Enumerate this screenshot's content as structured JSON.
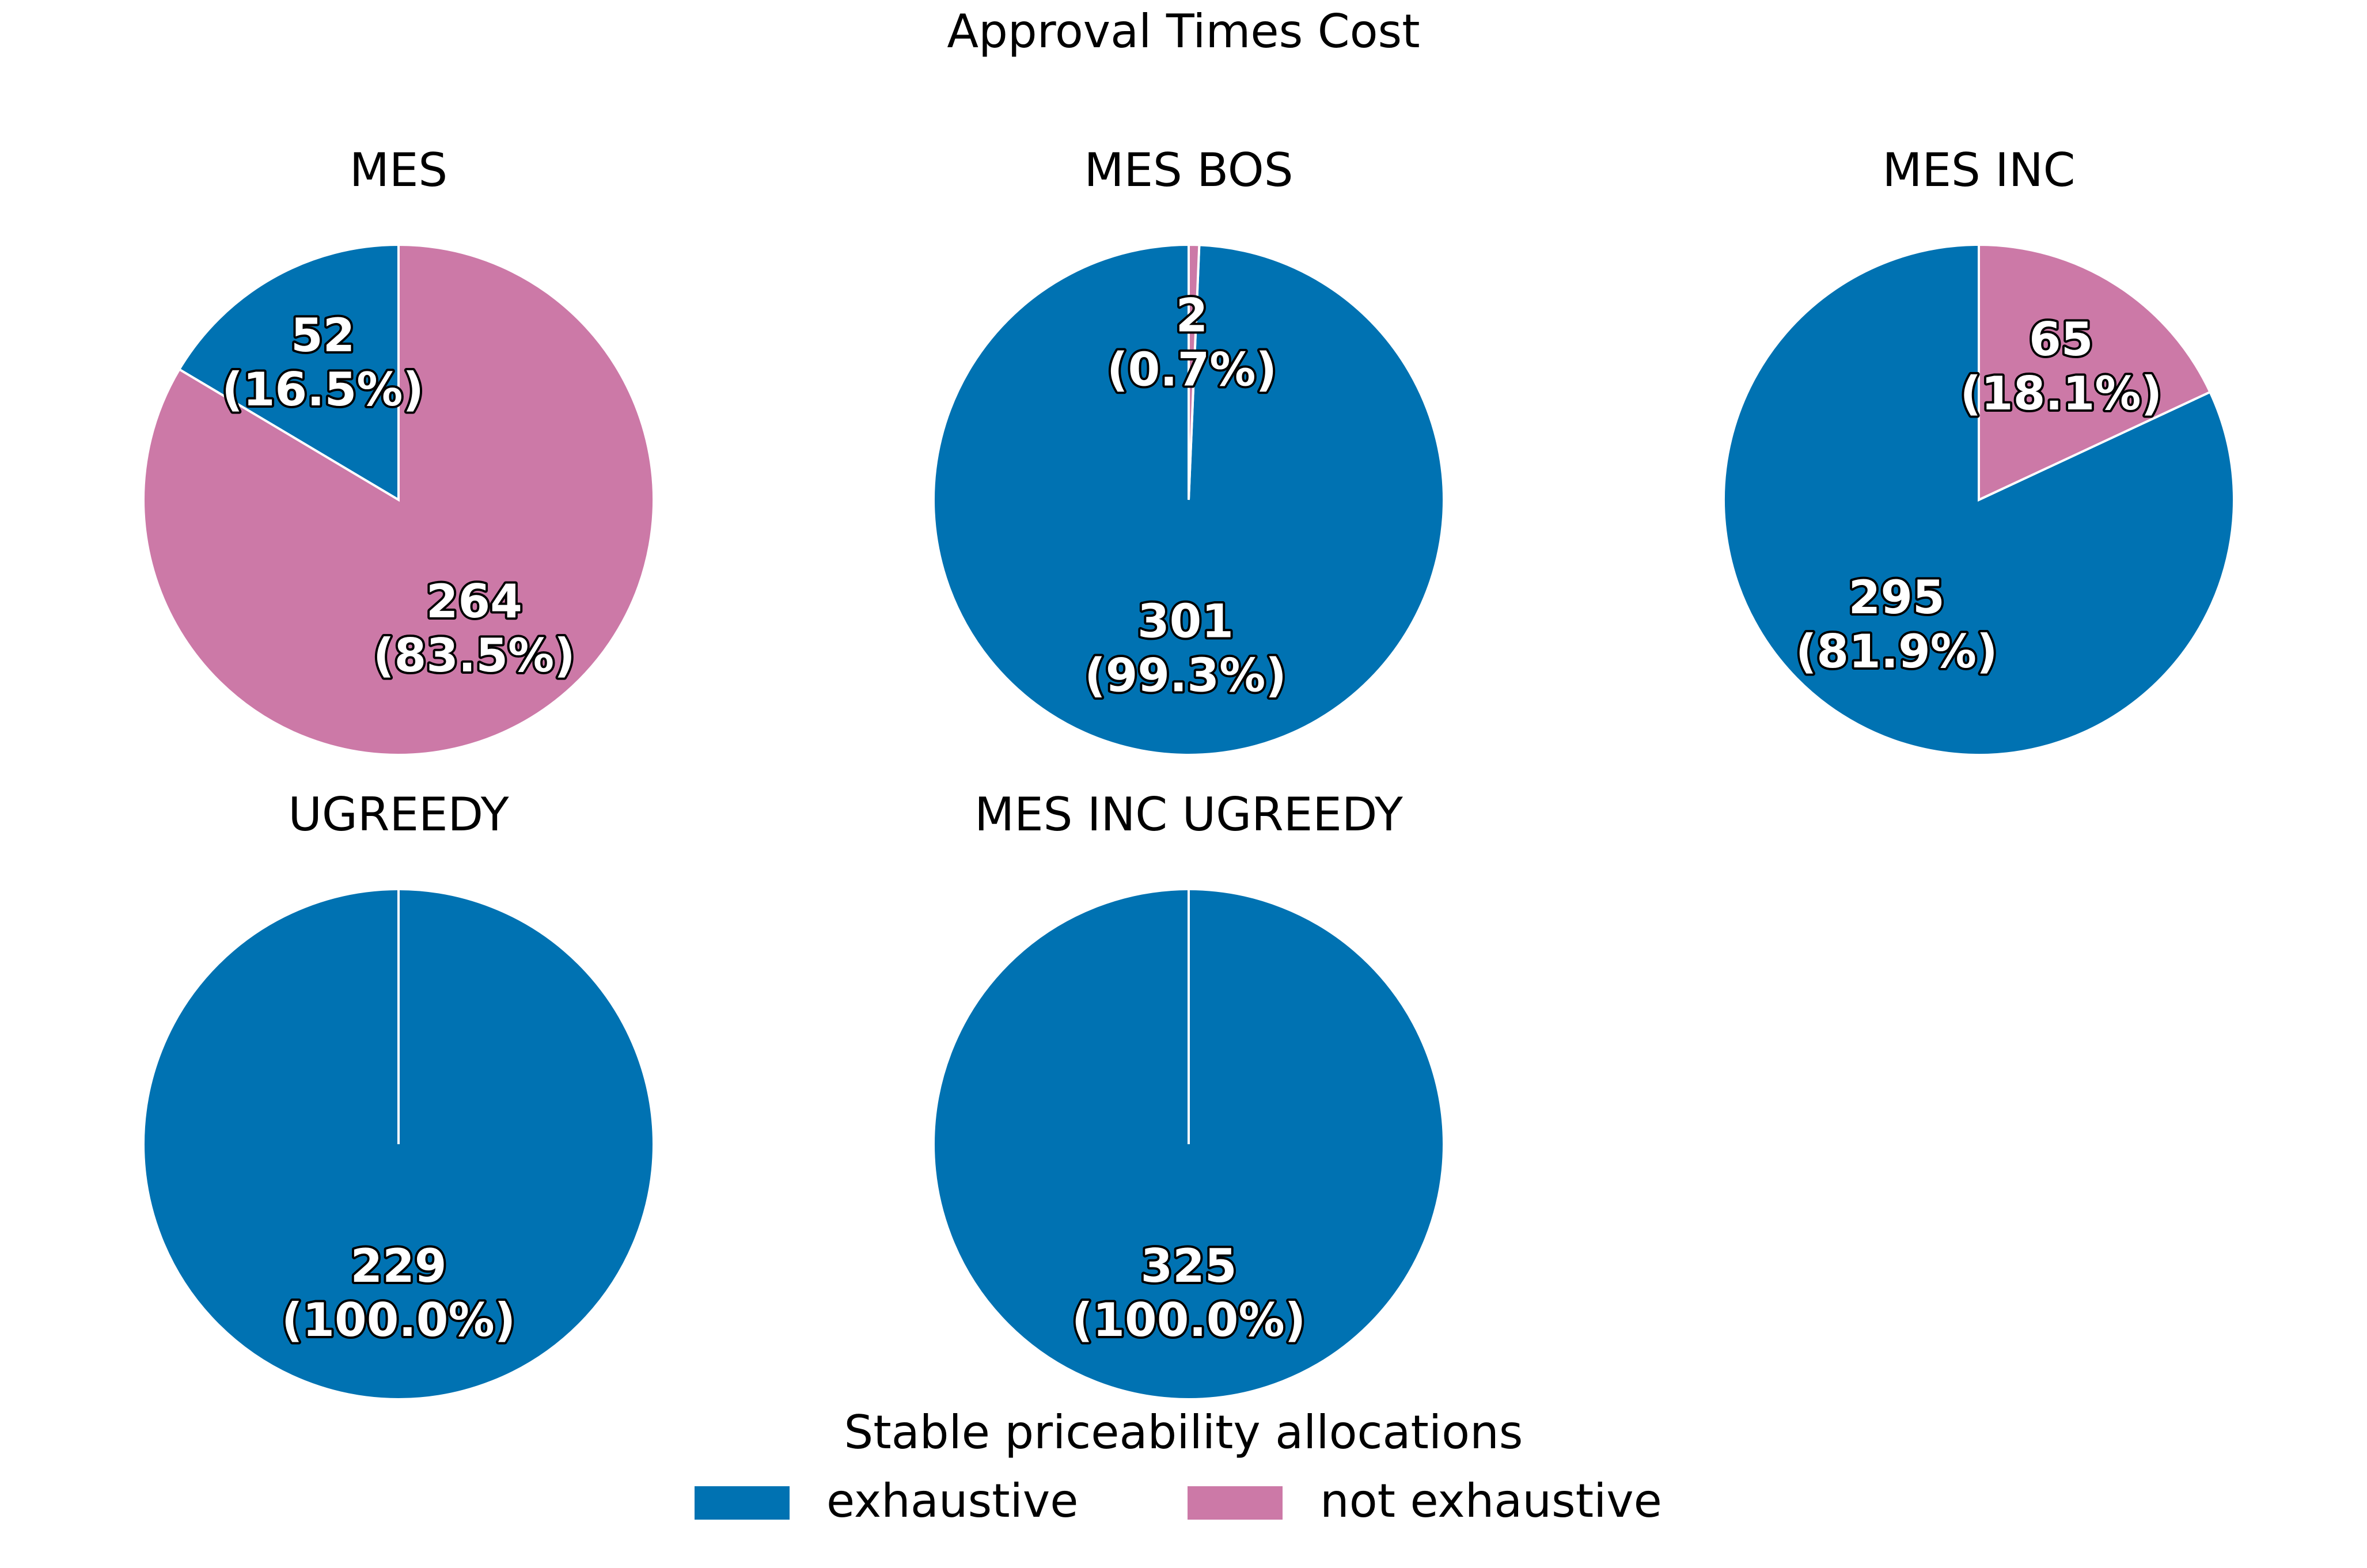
{
  "chart_data": {
    "type": "pie",
    "title": "Approval Times Cost",
    "legend": {
      "title": "Stable priceability allocations",
      "placement": "bottom-center",
      "entries": [
        {
          "name": "exhaustive",
          "color": "#0072b2"
        },
        {
          "name": "not exhaustive",
          "color": "#cc79a7"
        }
      ]
    },
    "categories": [
      "exhaustive",
      "not exhaustive"
    ],
    "colors": {
      "exhaustive": "#0072b2",
      "not exhaustive": "#cc79a7",
      "edge": "#ffffff"
    },
    "pies": [
      {
        "name": "MES",
        "values": [
          52,
          264
        ],
        "labels": [
          "52\n(16.5%)",
          "264\n(83.5%)"
        ]
      },
      {
        "name": "MES BOS",
        "values": [
          301,
          2
        ],
        "labels": [
          "301\n(99.3%)",
          "2\n(0.7%)"
        ]
      },
      {
        "name": "MES INC",
        "values": [
          295,
          65
        ],
        "labels": [
          "295\n(81.9%)",
          "65\n(18.1%)"
        ]
      },
      {
        "name": "UGREEDY",
        "values": [
          229,
          0
        ],
        "labels": [
          "229\n(100.0%)",
          ""
        ]
      },
      {
        "name": "MES INC UGREEDY",
        "values": [
          325,
          0
        ],
        "labels": [
          "325\n(100.0%)",
          ""
        ]
      }
    ]
  }
}
